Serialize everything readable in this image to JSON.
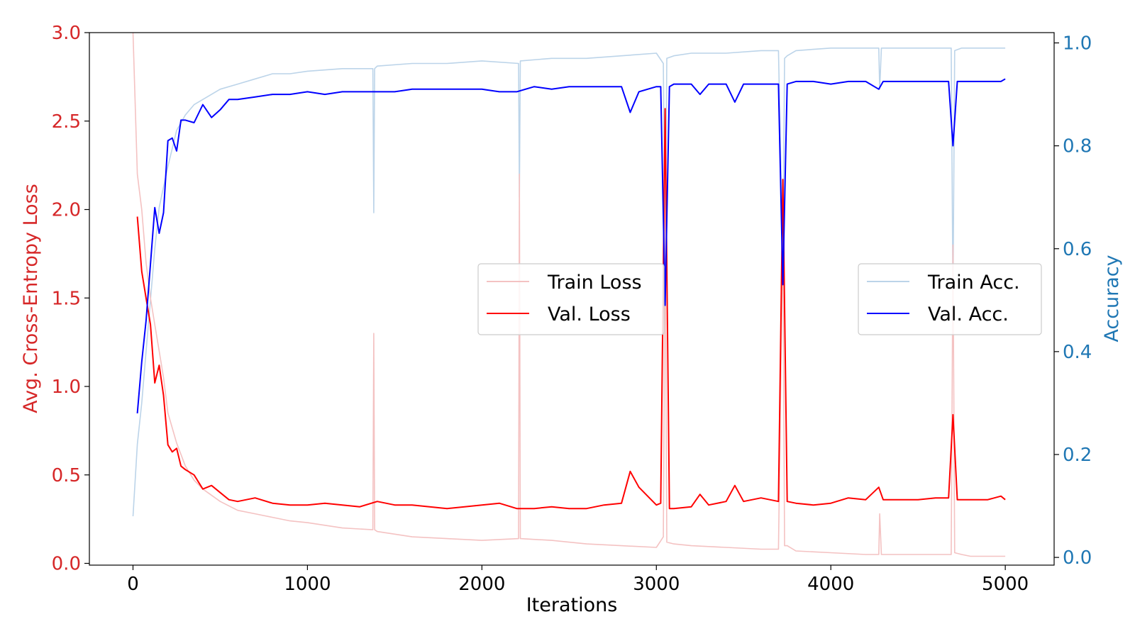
{
  "chart_data": {
    "type": "line",
    "xlabel": "Iterations",
    "ylabel_left": "Avg. Cross-Entropy Loss",
    "ylabel_right": "Accuracy",
    "xlim": [
      -250,
      5280
    ],
    "ylim_left": [
      -0.01,
      3.0
    ],
    "ylim_right": [
      -0.015,
      1.02
    ],
    "x_ticks": [
      0,
      1000,
      2000,
      3000,
      4000,
      5000
    ],
    "y_left_ticks": [
      "0.0",
      "0.5",
      "1.0",
      "1.5",
      "2.0",
      "2.5",
      "3.0"
    ],
    "y_right_ticks": [
      "0.0",
      "0.2",
      "0.4",
      "0.6",
      "0.8",
      "1.0"
    ],
    "grid": false,
    "legends": [
      {
        "placement": "center",
        "entries": [
          "Train Loss",
          "Val. Loss"
        ]
      },
      {
        "placement": "center-right",
        "entries": [
          "Train Acc.",
          "Val. Acc."
        ]
      }
    ],
    "colors": {
      "loss_axis": "#d62728",
      "acc_axis": "#1f77b4",
      "train_loss": "#f4c2c2",
      "val_loss": "#ff0000",
      "train_acc": "#bcd4e9",
      "val_acc": "#0000ff"
    },
    "series": [
      {
        "name": "Train Loss",
        "axis": "left",
        "x": [
          0,
          25,
          50,
          75,
          100,
          125,
          150,
          175,
          200,
          250,
          300,
          350,
          400,
          500,
          600,
          700,
          800,
          900,
          1000,
          1200,
          1375,
          1380,
          1385,
          1400,
          1600,
          1800,
          2000,
          2210,
          2215,
          2220,
          2400,
          2600,
          2800,
          3000,
          3040,
          3050,
          3060,
          3100,
          3200,
          3400,
          3600,
          3700,
          3725,
          3735,
          3750,
          3800,
          4000,
          4200,
          4275,
          4280,
          4290,
          4400,
          4600,
          4690,
          4700,
          4710,
          4750,
          4800,
          5000
        ],
        "y": [
          3.0,
          2.2,
          2.0,
          1.7,
          1.5,
          1.35,
          1.2,
          1.05,
          0.85,
          0.68,
          0.55,
          0.47,
          0.42,
          0.35,
          0.3,
          0.28,
          0.26,
          0.24,
          0.23,
          0.2,
          0.19,
          1.3,
          0.19,
          0.18,
          0.15,
          0.14,
          0.13,
          0.14,
          2.2,
          0.14,
          0.13,
          0.11,
          0.1,
          0.09,
          0.15,
          2.0,
          0.12,
          0.11,
          0.1,
          0.09,
          0.08,
          0.08,
          1.9,
          0.1,
          0.1,
          0.07,
          0.06,
          0.05,
          0.05,
          0.28,
          0.05,
          0.05,
          0.05,
          0.05,
          1.8,
          0.06,
          0.05,
          0.04,
          0.04
        ]
      },
      {
        "name": "Val. Loss",
        "axis": "left",
        "x": [
          25,
          50,
          75,
          100,
          125,
          150,
          175,
          200,
          225,
          250,
          275,
          300,
          350,
          400,
          450,
          500,
          550,
          600,
          700,
          800,
          900,
          1000,
          1100,
          1200,
          1300,
          1400,
          1500,
          1600,
          1700,
          1800,
          1900,
          2000,
          2100,
          2200,
          2300,
          2400,
          2500,
          2600,
          2700,
          2800,
          2850,
          2900,
          3000,
          3025,
          3050,
          3075,
          3100,
          3200,
          3250,
          3300,
          3400,
          3450,
          3500,
          3600,
          3700,
          3725,
          3750,
          3800,
          3900,
          4000,
          4100,
          4200,
          4275,
          4300,
          4400,
          4500,
          4600,
          4675,
          4700,
          4725,
          4800,
          4900,
          4975,
          5000
        ],
        "y": [
          1.96,
          1.65,
          1.5,
          1.35,
          1.02,
          1.12,
          0.95,
          0.67,
          0.63,
          0.65,
          0.55,
          0.53,
          0.5,
          0.42,
          0.44,
          0.4,
          0.36,
          0.35,
          0.37,
          0.34,
          0.33,
          0.33,
          0.34,
          0.33,
          0.32,
          0.35,
          0.33,
          0.33,
          0.32,
          0.31,
          0.32,
          0.33,
          0.34,
          0.31,
          0.31,
          0.32,
          0.31,
          0.31,
          0.33,
          0.34,
          0.52,
          0.43,
          0.33,
          0.34,
          2.57,
          0.31,
          0.31,
          0.32,
          0.39,
          0.33,
          0.35,
          0.44,
          0.35,
          0.37,
          0.35,
          2.17,
          0.35,
          0.34,
          0.33,
          0.34,
          0.37,
          0.36,
          0.43,
          0.36,
          0.36,
          0.36,
          0.37,
          0.37,
          0.84,
          0.36,
          0.36,
          0.36,
          0.38,
          0.36
        ]
      },
      {
        "name": "Train Acc.",
        "axis": "right",
        "x": [
          0,
          25,
          50,
          75,
          100,
          125,
          150,
          175,
          200,
          250,
          300,
          350,
          400,
          500,
          600,
          700,
          800,
          900,
          1000,
          1200,
          1375,
          1380,
          1385,
          1400,
          1600,
          1800,
          2000,
          2210,
          2215,
          2220,
          2400,
          2600,
          2800,
          3000,
          3040,
          3050,
          3060,
          3100,
          3200,
          3400,
          3600,
          3700,
          3725,
          3735,
          3750,
          3800,
          4000,
          4200,
          4275,
          4280,
          4290,
          4400,
          4600,
          4690,
          4700,
          4710,
          4750,
          4800,
          5000
        ],
        "y": [
          0.08,
          0.22,
          0.3,
          0.4,
          0.5,
          0.6,
          0.68,
          0.72,
          0.76,
          0.83,
          0.86,
          0.88,
          0.89,
          0.91,
          0.92,
          0.93,
          0.94,
          0.94,
          0.945,
          0.95,
          0.95,
          0.67,
          0.95,
          0.955,
          0.96,
          0.96,
          0.965,
          0.96,
          0.7,
          0.965,
          0.97,
          0.97,
          0.975,
          0.98,
          0.96,
          0.55,
          0.97,
          0.975,
          0.98,
          0.98,
          0.985,
          0.985,
          0.56,
          0.97,
          0.975,
          0.985,
          0.99,
          0.99,
          0.99,
          0.91,
          0.99,
          0.99,
          0.99,
          0.99,
          0.5,
          0.985,
          0.99,
          0.99,
          0.99
        ]
      },
      {
        "name": "Val. Acc.",
        "axis": "right",
        "x": [
          25,
          50,
          75,
          100,
          125,
          150,
          175,
          200,
          225,
          250,
          275,
          300,
          350,
          400,
          450,
          500,
          550,
          600,
          700,
          800,
          900,
          1000,
          1100,
          1200,
          1300,
          1400,
          1500,
          1600,
          1700,
          1800,
          1900,
          2000,
          2100,
          2200,
          2300,
          2400,
          2500,
          2600,
          2700,
          2800,
          2850,
          2900,
          3000,
          3025,
          3050,
          3075,
          3100,
          3200,
          3250,
          3300,
          3400,
          3450,
          3500,
          3600,
          3700,
          3725,
          3750,
          3800,
          3900,
          4000,
          4100,
          4200,
          4275,
          4300,
          4400,
          4500,
          4600,
          4675,
          4700,
          4725,
          4800,
          4900,
          4975,
          5000
        ],
        "y": [
          0.28,
          0.38,
          0.46,
          0.57,
          0.68,
          0.63,
          0.67,
          0.81,
          0.815,
          0.79,
          0.85,
          0.85,
          0.845,
          0.88,
          0.855,
          0.87,
          0.89,
          0.89,
          0.895,
          0.9,
          0.9,
          0.905,
          0.9,
          0.905,
          0.905,
          0.905,
          0.905,
          0.91,
          0.91,
          0.91,
          0.91,
          0.91,
          0.905,
          0.905,
          0.915,
          0.91,
          0.915,
          0.915,
          0.915,
          0.915,
          0.865,
          0.905,
          0.915,
          0.915,
          0.49,
          0.915,
          0.92,
          0.92,
          0.9,
          0.92,
          0.92,
          0.885,
          0.92,
          0.92,
          0.92,
          0.53,
          0.92,
          0.925,
          0.925,
          0.92,
          0.925,
          0.925,
          0.91,
          0.925,
          0.925,
          0.925,
          0.925,
          0.925,
          0.8,
          0.925,
          0.925,
          0.925,
          0.925,
          0.93
        ]
      }
    ]
  }
}
